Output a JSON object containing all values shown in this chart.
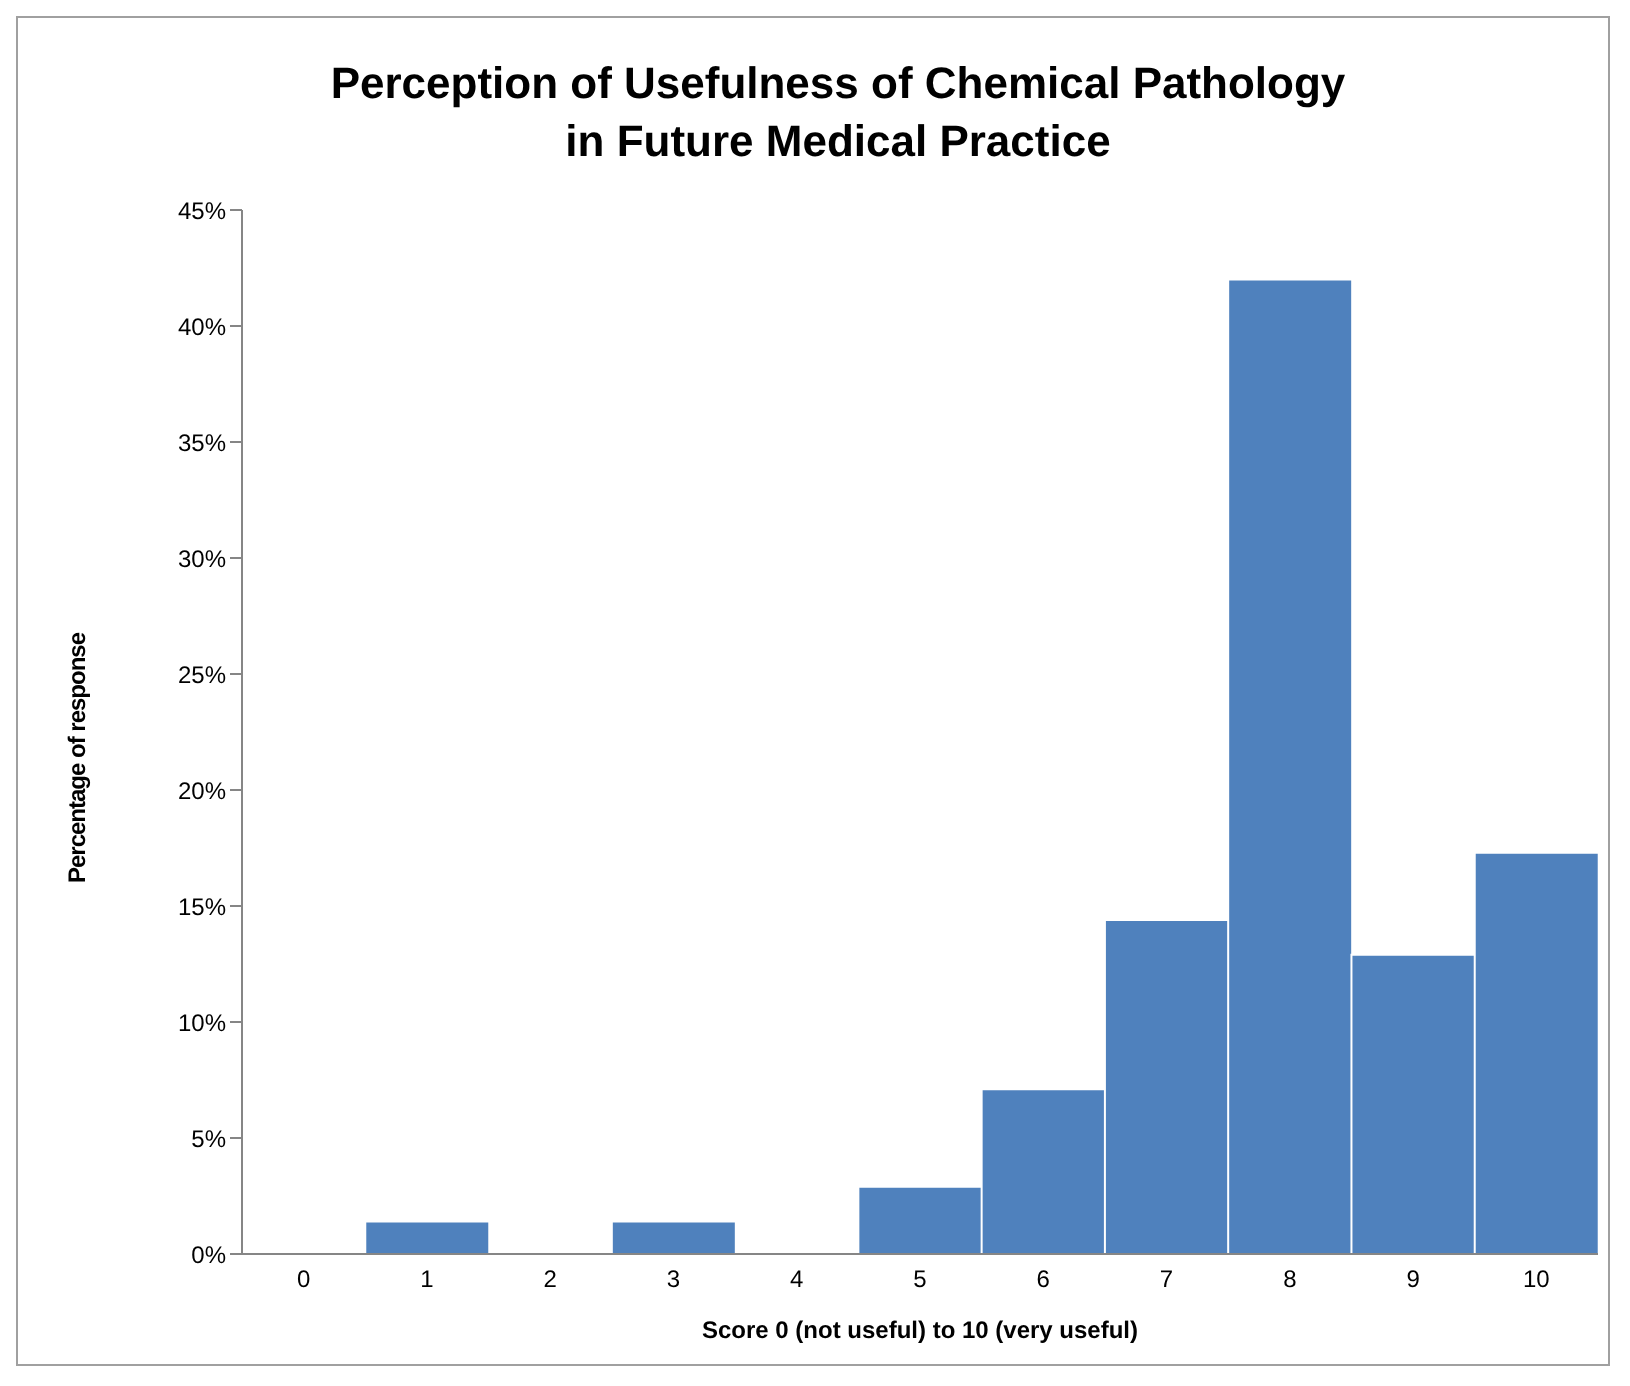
{
  "chart_data": {
    "type": "bar",
    "title": "Perception of Usefulness of Chemical Pathology in Future Medical Practice",
    "xlabel": "Score 0 (not useful) to 10 (very useful)",
    "ylabel": "Percentage of response",
    "categories": [
      "0",
      "1",
      "2",
      "3",
      "4",
      "5",
      "6",
      "7",
      "8",
      "9",
      "10"
    ],
    "values": [
      0,
      1.4,
      0,
      1.4,
      0,
      2.9,
      7.1,
      14.4,
      42,
      12.9,
      17.3
    ],
    "color": "#4f81bd",
    "ylim": [
      0,
      45
    ],
    "yticks": [
      {
        "value": 0,
        "label": "0%"
      },
      {
        "value": 5,
        "label": "5%"
      },
      {
        "value": 10,
        "label": "10%"
      },
      {
        "value": 15,
        "label": "15%"
      },
      {
        "value": 20,
        "label": "20%"
      },
      {
        "value": 25,
        "label": "25%"
      },
      {
        "value": 30,
        "label": "30%"
      },
      {
        "value": 35,
        "label": "35%"
      },
      {
        "value": 40,
        "label": "40%"
      },
      {
        "value": 45,
        "label": "45%"
      }
    ],
    "grid": false,
    "legend": false
  }
}
